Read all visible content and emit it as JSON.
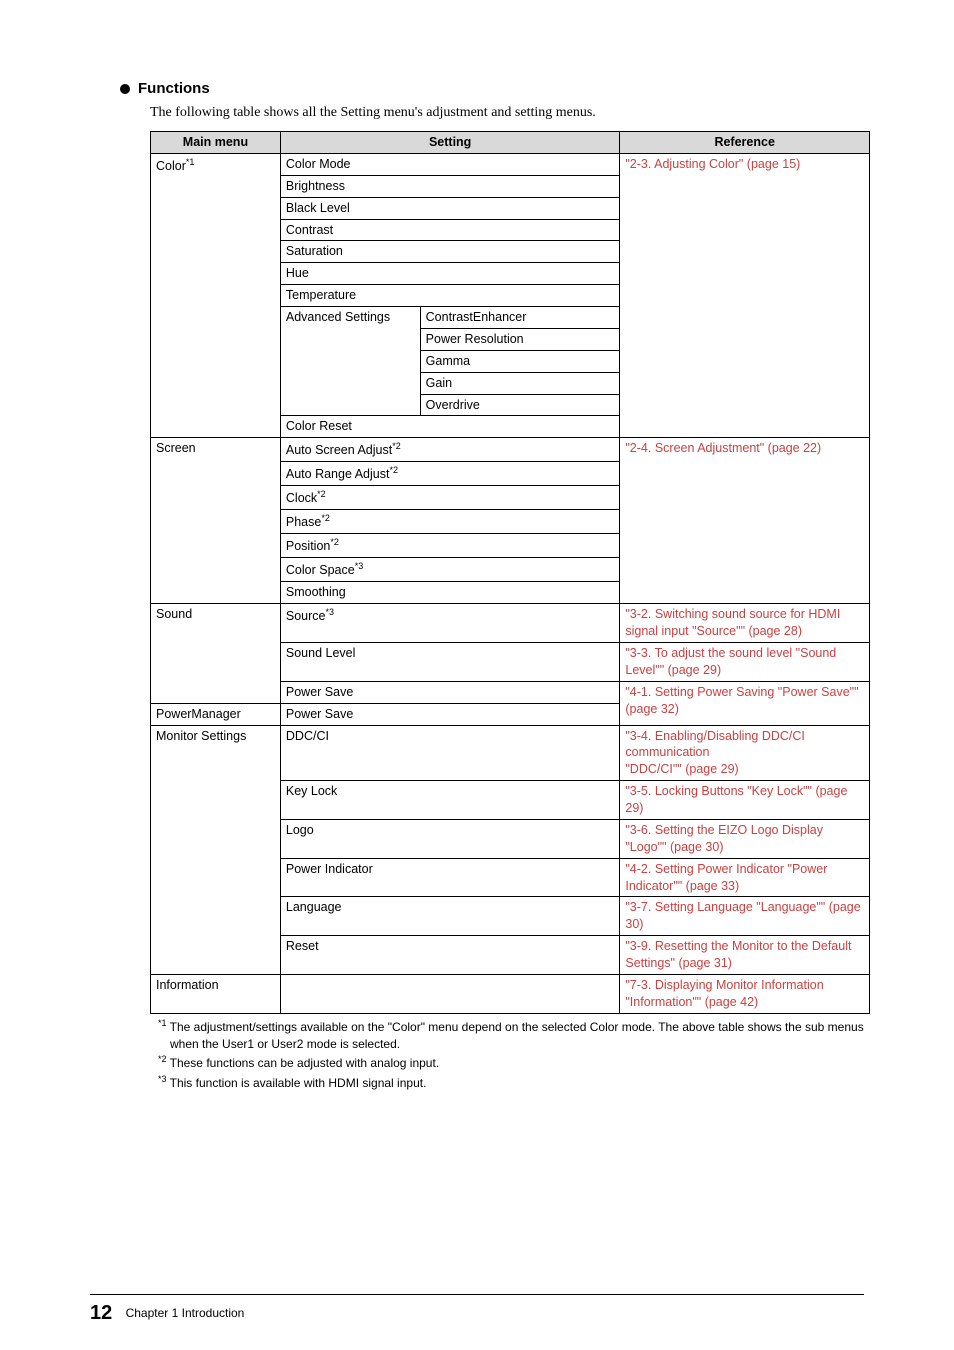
{
  "section": {
    "heading": "Functions",
    "intro": "The following table shows all the Setting menu's adjustment and setting menus."
  },
  "table": {
    "headers": {
      "main": "Main menu",
      "setting": "Setting",
      "reference": "Reference"
    },
    "color": {
      "menu": "Color",
      "menu_sup": "*1",
      "rows": [
        "Color Mode",
        "Brightness",
        "Black Level",
        "Contrast",
        "Saturation",
        "Hue",
        "Temperature"
      ],
      "adv_label": "Advanced Settings",
      "adv_items": [
        "ContrastEnhancer",
        "Power Resolution",
        "Gamma",
        "Gain",
        "Overdrive"
      ],
      "reset": "Color Reset",
      "ref": "\"2-3. Adjusting Color\" (page 15)"
    },
    "screen": {
      "menu": "Screen",
      "rows": [
        {
          "t": "Auto Screen Adjust",
          "sup": "*2"
        },
        {
          "t": "Auto Range Adjust",
          "sup": "*2"
        },
        {
          "t": "Clock",
          "sup": "*2"
        },
        {
          "t": "Phase",
          "sup": "*2"
        },
        {
          "t": "Position",
          "sup": "*2"
        },
        {
          "t": "Color Space",
          "sup": "*3"
        },
        {
          "t": "Smoothing",
          "sup": ""
        }
      ],
      "ref": "\"2-4. Screen Adjustment\" (page 22)"
    },
    "sound": {
      "menu": "Sound",
      "source_label": "Source",
      "source_sup": "*3",
      "source_ref": "\"3-2. Switching sound source for HDMI signal input \"Source\"\" (page 28)",
      "level_label": "Sound Level",
      "level_ref": "\"3-3. To adjust the sound level \"Sound Level\"\" (page 29)",
      "powersave_label": "Power Save",
      "powersave_ref": "\"4-1. Setting Power Saving \"Power Save\"\" (page 32)"
    },
    "powermanager": {
      "menu": "PowerManager",
      "setting": "Power Save"
    },
    "monitor": {
      "menu": "Monitor Settings",
      "rows": [
        {
          "s": "DDC/CI",
          "r": "\"3-4. Enabling/Disabling DDC/CI communication\n\"DDC/CI\"\" (page 29)"
        },
        {
          "s": "Key Lock",
          "r": "\"3-5. Locking Buttons \"Key Lock\"\" (page 29)"
        },
        {
          "s": "Logo",
          "r": "\"3-6. Setting the EIZO Logo Display \"Logo\"\" (page 30)"
        },
        {
          "s": "Power Indicator",
          "r": "\"4-2. Setting Power Indicator \"Power Indicator\"\" (page 33)"
        },
        {
          "s": "Language",
          "r": "\"3-7. Setting Language \"Language\"\" (page 30)"
        },
        {
          "s": "Reset",
          "r": "\"3-9. Resetting the Monitor to the Default Settings\" (page 31)"
        }
      ]
    },
    "information": {
      "menu": "Information",
      "ref": "\"7-3. Displaying Monitor Information \"Information\"\" (page 42)"
    }
  },
  "footnotes": {
    "n1_sup": "*1",
    "n1": " The adjustment/settings available on the \"Color\" menu depend on the selected Color mode. The above table shows the sub menus when the User1 or User2 mode is selected.",
    "n2_sup": "*2",
    "n2": " These functions can be adjusted with analog input.",
    "n3_sup": "*3",
    "n3": " This function is available with HDMI signal input."
  },
  "footer": {
    "page": "12",
    "chapter": "Chapter 1 Introduction"
  },
  "style": {
    "link_color": "#c94141",
    "header_bg": "#d9d9d9",
    "col_main_w": 130,
    "col_setting1_w": 140,
    "col_setting2_w": 200,
    "col_ref_w": 250
  }
}
